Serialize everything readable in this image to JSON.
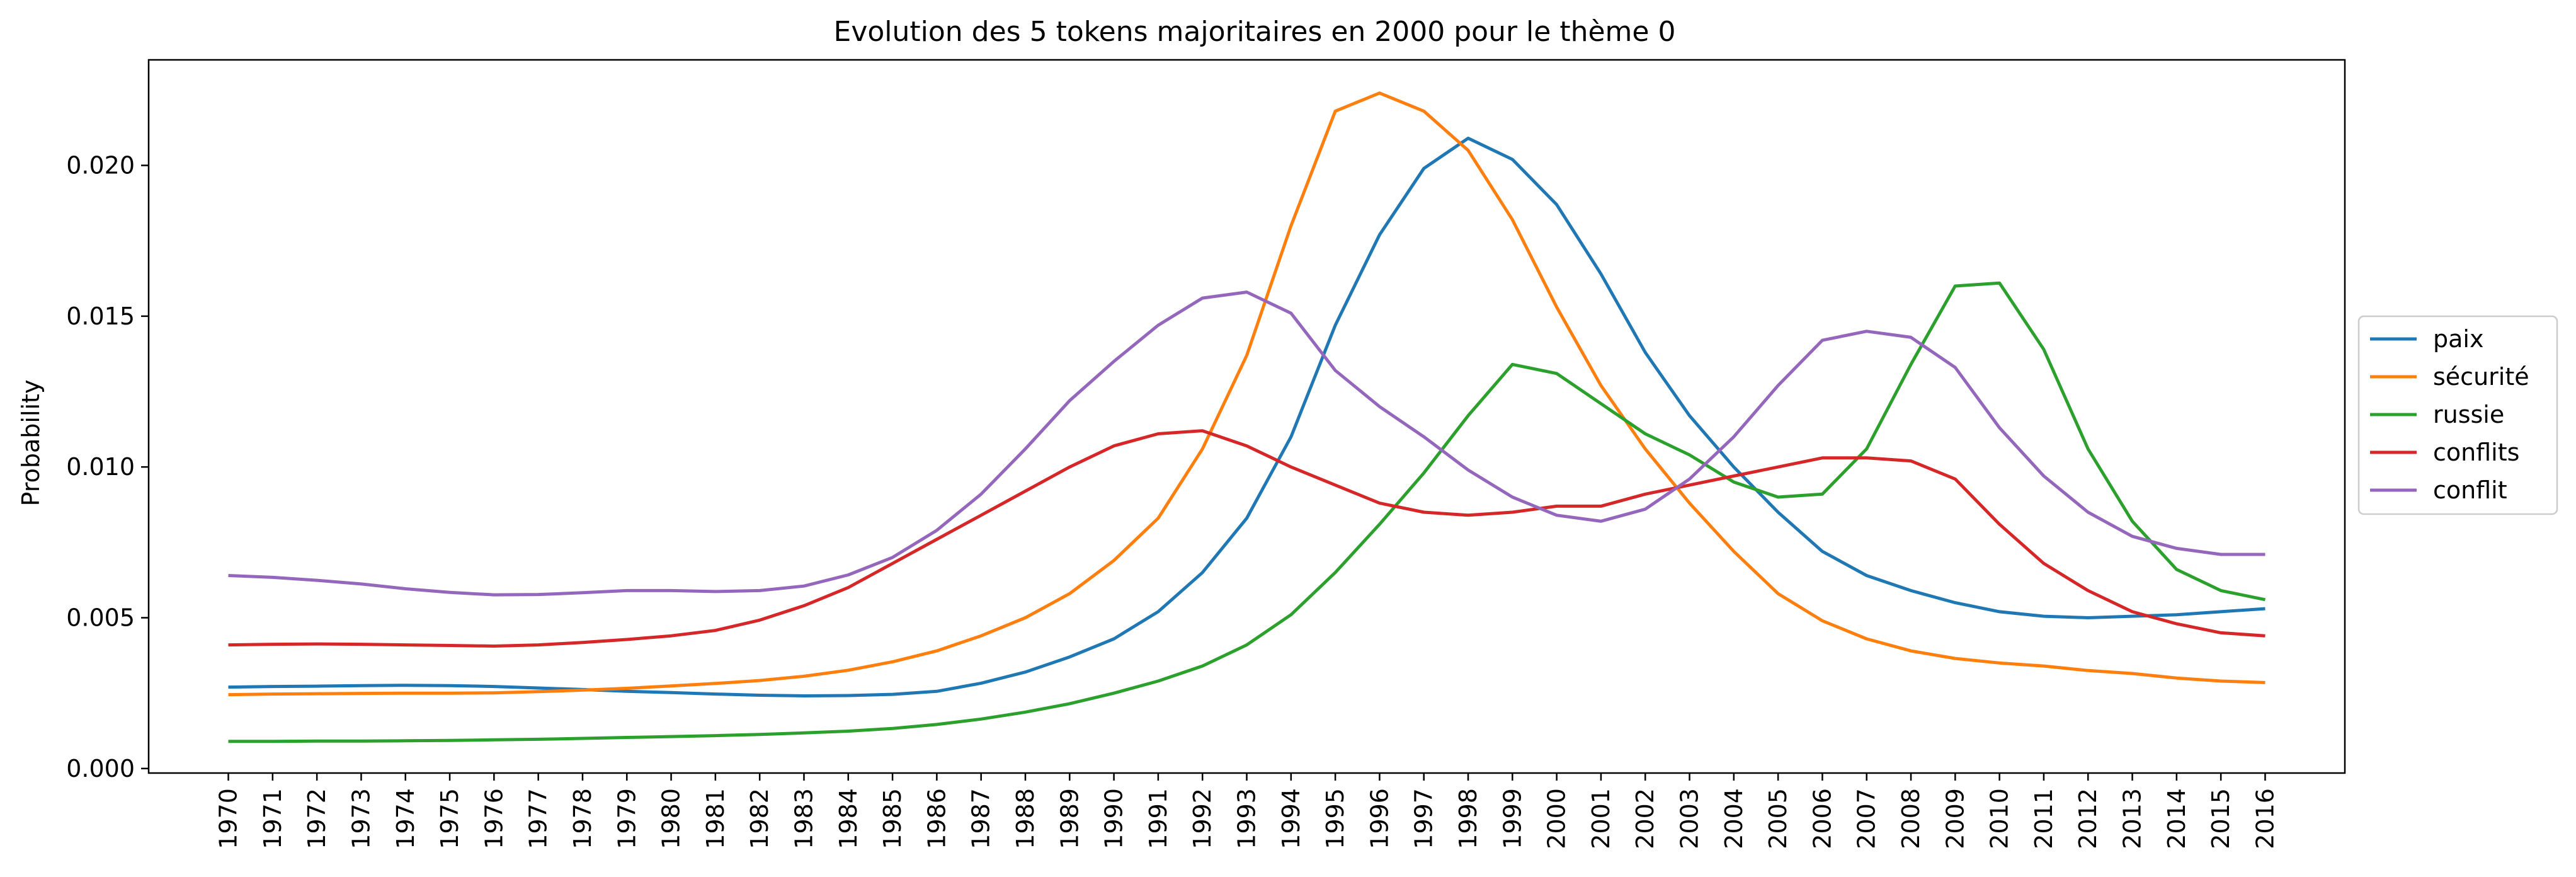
{
  "chart_data": {
    "type": "line",
    "title": "Evolution des 5 tokens majoritaires en 2000 pour le thème 0",
    "xlabel": "",
    "ylabel": "Probability",
    "x": [
      1970,
      1971,
      1972,
      1973,
      1974,
      1975,
      1976,
      1977,
      1978,
      1979,
      1980,
      1981,
      1982,
      1983,
      1984,
      1985,
      1986,
      1987,
      1988,
      1989,
      1990,
      1991,
      1992,
      1993,
      1994,
      1995,
      1996,
      1997,
      1998,
      1999,
      2000,
      2001,
      2002,
      2003,
      2004,
      2005,
      2006,
      2007,
      2008,
      2009,
      2010,
      2011,
      2012,
      2013,
      2014,
      2015,
      2016
    ],
    "xlim": [
      1968.2,
      2017.8
    ],
    "ylim": [
      -0.00015,
      0.0235
    ],
    "yticks": [
      0.0,
      0.005,
      0.01,
      0.015,
      0.02
    ],
    "ytick_labels": [
      "0.000",
      "0.005",
      "0.010",
      "0.015",
      "0.020"
    ],
    "grid": false,
    "legend_position": "center-right-outside",
    "series": [
      {
        "name": "paix",
        "color": "#1f77b4",
        "values": [
          0.0027,
          0.00272,
          0.00273,
          0.00275,
          0.00276,
          0.00275,
          0.00272,
          0.00267,
          0.00262,
          0.00256,
          0.00252,
          0.00247,
          0.00243,
          0.00241,
          0.00242,
          0.00246,
          0.00256,
          0.00283,
          0.0032,
          0.0037,
          0.0043,
          0.0052,
          0.0065,
          0.0083,
          0.011,
          0.0147,
          0.0177,
          0.0199,
          0.0209,
          0.0202,
          0.0187,
          0.0164,
          0.0138,
          0.0117,
          0.01,
          0.0085,
          0.0072,
          0.0064,
          0.0059,
          0.0055,
          0.0052,
          0.00505,
          0.005,
          0.00505,
          0.0051,
          0.0052,
          0.0053
        ]
      },
      {
        "name": "sécurité",
        "color": "#ff7f0e",
        "values": [
          0.00245,
          0.00247,
          0.00248,
          0.00249,
          0.0025,
          0.0025,
          0.00251,
          0.00255,
          0.0026,
          0.00266,
          0.00274,
          0.00282,
          0.00292,
          0.00306,
          0.00326,
          0.00354,
          0.0039,
          0.0044,
          0.005,
          0.0058,
          0.0069,
          0.0083,
          0.0106,
          0.0137,
          0.018,
          0.0218,
          0.0224,
          0.0218,
          0.0205,
          0.0182,
          0.0153,
          0.0127,
          0.0106,
          0.0088,
          0.0072,
          0.0058,
          0.0049,
          0.0043,
          0.0039,
          0.00365,
          0.0035,
          0.0034,
          0.00325,
          0.00315,
          0.003,
          0.0029,
          0.00285
        ]
      },
      {
        "name": "russie",
        "color": "#2ca02c",
        "values": [
          0.0009,
          0.0009,
          0.00091,
          0.00091,
          0.00092,
          0.00093,
          0.00095,
          0.00097,
          0.001,
          0.00103,
          0.00106,
          0.00109,
          0.00113,
          0.00118,
          0.00124,
          0.00133,
          0.00146,
          0.00164,
          0.00187,
          0.00215,
          0.0025,
          0.0029,
          0.0034,
          0.0041,
          0.0051,
          0.0065,
          0.0081,
          0.0098,
          0.0117,
          0.0134,
          0.0131,
          0.0121,
          0.0111,
          0.0104,
          0.0095,
          0.009,
          0.0091,
          0.0106,
          0.0134,
          0.016,
          0.0161,
          0.0139,
          0.0106,
          0.0082,
          0.0066,
          0.0059,
          0.0056
        ]
      },
      {
        "name": "conflits",
        "color": "#d62728",
        "values": [
          0.0041,
          0.00412,
          0.00413,
          0.00412,
          0.0041,
          0.00408,
          0.00406,
          0.0041,
          0.00418,
          0.00428,
          0.0044,
          0.00458,
          0.00492,
          0.0054,
          0.006,
          0.0068,
          0.0076,
          0.0084,
          0.0092,
          0.01,
          0.0107,
          0.0111,
          0.0112,
          0.0107,
          0.01,
          0.0094,
          0.0088,
          0.0085,
          0.0084,
          0.0085,
          0.0087,
          0.0087,
          0.0091,
          0.0094,
          0.0097,
          0.01,
          0.0103,
          0.0103,
          0.0102,
          0.0096,
          0.0081,
          0.0068,
          0.0059,
          0.0052,
          0.0048,
          0.0045,
          0.0044
        ]
      },
      {
        "name": "conflit",
        "color": "#9467bd",
        "values": [
          0.0064,
          0.00634,
          0.00624,
          0.00612,
          0.00596,
          0.00584,
          0.00576,
          0.00577,
          0.00583,
          0.0059,
          0.0059,
          0.00587,
          0.0059,
          0.00605,
          0.00642,
          0.007,
          0.0079,
          0.0091,
          0.0106,
          0.0122,
          0.0135,
          0.0147,
          0.0156,
          0.0158,
          0.0151,
          0.0132,
          0.012,
          0.011,
          0.0099,
          0.009,
          0.0084,
          0.0082,
          0.0086,
          0.0096,
          0.011,
          0.0127,
          0.0142,
          0.0145,
          0.0143,
          0.0133,
          0.0113,
          0.0097,
          0.0085,
          0.0077,
          0.0073,
          0.0071,
          0.0071
        ]
      }
    ]
  }
}
